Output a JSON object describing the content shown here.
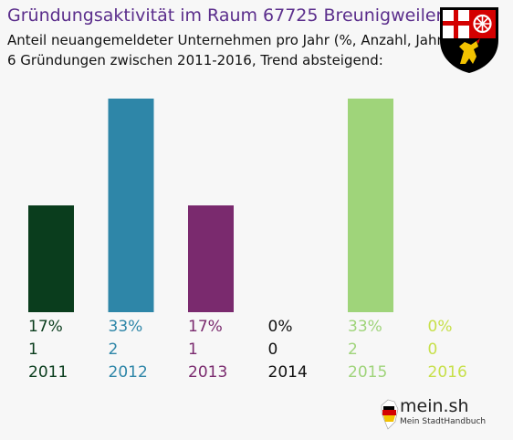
{
  "header": {
    "title": "Gründungsaktivität im Raum 67725 Breunigweiler",
    "subtitle_line1": "Anteil neuangemeldeter Unternehmen pro Jahr (%, Anzahl, Jahr)",
    "subtitle_line2": "6 Gründungen zwischen 2011-2016, Trend absteigend:"
  },
  "crest": {
    "icon": "rhineland-palatinate-coat-of-arms-icon"
  },
  "logo": {
    "name": "mein.sh",
    "tagline": "Mein StadtHandbuch"
  },
  "chart_data": {
    "type": "bar",
    "categories": [
      "2011",
      "2012",
      "2013",
      "2014",
      "2015",
      "2016"
    ],
    "values": [
      1,
      2,
      1,
      0,
      2,
      0
    ],
    "percent_labels": [
      "17%",
      "33%",
      "17%",
      "0%",
      "33%",
      "0%"
    ],
    "count_labels": [
      "1",
      "2",
      "1",
      "0",
      "2",
      "0"
    ],
    "colors": [
      "#0a3d1d",
      "#2e86a8",
      "#7a2a6e",
      "#111111",
      "#9fd47a",
      "#c7e04a"
    ],
    "ylim": [
      0,
      2
    ],
    "grid": false,
    "xlabel": "",
    "ylabel": ""
  }
}
